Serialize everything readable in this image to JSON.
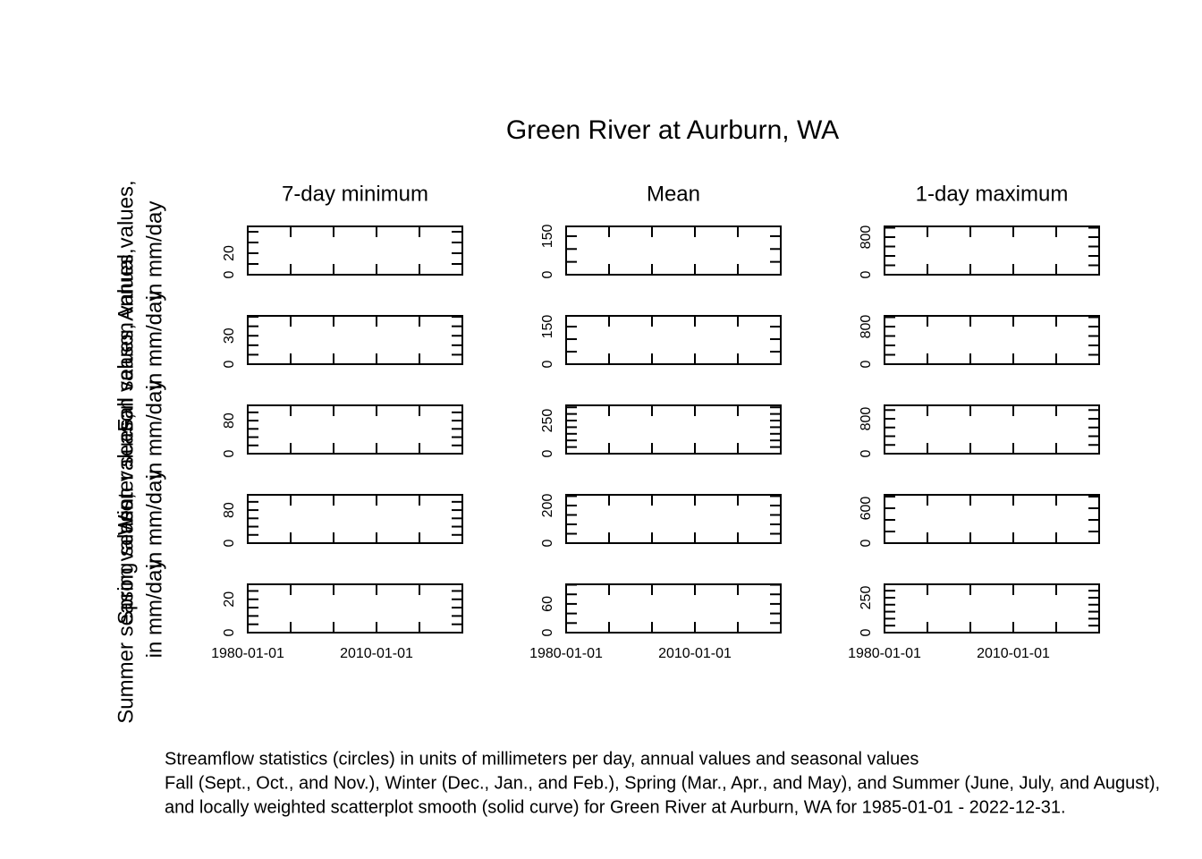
{
  "chart_data": {
    "type": "scatter",
    "title": "Green River at Aurburn, WA",
    "column_titles": [
      "7-day minimum",
      "Mean",
      "1-day maximum"
    ],
    "row_labels": [
      [
        "Annual values,",
        "in mm/day"
      ],
      [
        "Fall season values,",
        "in mm/day"
      ],
      [
        "Winter season values,",
        "in mm/day"
      ],
      [
        "Spring season values,",
        "in mm/day"
      ],
      [
        "Summer season values,",
        "in mm/day"
      ]
    ],
    "xlim": [
      1980,
      2030
    ],
    "xticks": [
      {
        "value": 1980,
        "label": "1980-01-01"
      },
      {
        "value": 2010,
        "label": "2010-01-01"
      }
    ],
    "x_minor_ticks": [
      1990,
      2000,
      2020,
      2030
    ],
    "panels": [
      [
        {
          "ylim": [
            0,
            45
          ],
          "yticks": [
            0,
            20
          ],
          "y_minor_ticks": [
            10,
            30,
            40
          ]
        },
        {
          "ylim": [
            0,
            188
          ],
          "yticks": [
            0,
            150
          ],
          "y_minor_ticks": [
            50,
            100
          ]
        },
        {
          "ylim": [
            0,
            1029
          ],
          "yticks": [
            0,
            800
          ],
          "y_minor_ticks": [
            200,
            400,
            600,
            1000
          ]
        }
      ],
      [
        {
          "ylim": [
            0,
            51
          ],
          "yticks": [
            0,
            30
          ],
          "y_minor_ticks": [
            10,
            20,
            40,
            50
          ]
        },
        {
          "ylim": [
            0,
            193
          ],
          "yticks": [
            0,
            150
          ],
          "y_minor_ticks": [
            50,
            100
          ]
        },
        {
          "ylim": [
            0,
            1029
          ],
          "yticks": [
            0,
            800
          ],
          "y_minor_ticks": [
            200,
            400,
            600,
            1000
          ]
        }
      ],
      [
        {
          "ylim": [
            0,
            117
          ],
          "yticks": [
            0,
            80
          ],
          "y_minor_ticks": [
            20,
            40,
            60,
            100
          ]
        },
        {
          "ylim": [
            0,
            365
          ],
          "yticks": [
            0,
            250
          ],
          "y_minor_ticks": [
            50,
            100,
            150,
            200,
            300,
            350
          ]
        },
        {
          "ylim": [
            0,
            1108
          ],
          "yticks": [
            0,
            800
          ],
          "y_minor_ticks": [
            200,
            400,
            600,
            1000
          ]
        }
      ],
      [
        {
          "ylim": [
            0,
            117
          ],
          "yticks": [
            0,
            80
          ],
          "y_minor_ticks": [
            20,
            40,
            60,
            100
          ]
        },
        {
          "ylim": [
            0,
            257
          ],
          "yticks": [
            0,
            200
          ],
          "y_minor_ticks": [
            50,
            100,
            150,
            250
          ]
        },
        {
          "ylim": [
            0,
            831
          ],
          "yticks": [
            0,
            600
          ],
          "y_minor_ticks": [
            200,
            400,
            800
          ]
        }
      ],
      [
        {
          "ylim": [
            0,
            29
          ],
          "yticks": [
            0,
            20
          ],
          "y_minor_ticks": [
            5,
            10,
            15,
            25
          ]
        },
        {
          "ylim": [
            0,
            101
          ],
          "yticks": [
            0,
            60
          ],
          "y_minor_ticks": [
            20,
            40,
            80,
            100
          ]
        },
        {
          "ylim": [
            0,
            346
          ],
          "yticks": [
            0,
            250
          ],
          "y_minor_ticks": [
            50,
            100,
            150,
            200,
            300
          ]
        }
      ]
    ],
    "caption": [
      "Streamflow statistics (circles) in units of millimeters per day, annual values and seasonal values",
      "Fall (Sept., Oct., and Nov.), Winter (Dec., Jan., and Feb.), Spring (Mar., Apr., and May), and Summer (June, July, and August),",
      "and locally weighted scatterplot smooth (solid curve) for Green River at Aurburn, WA for 1985-01-01 - 2022-12-31."
    ]
  }
}
